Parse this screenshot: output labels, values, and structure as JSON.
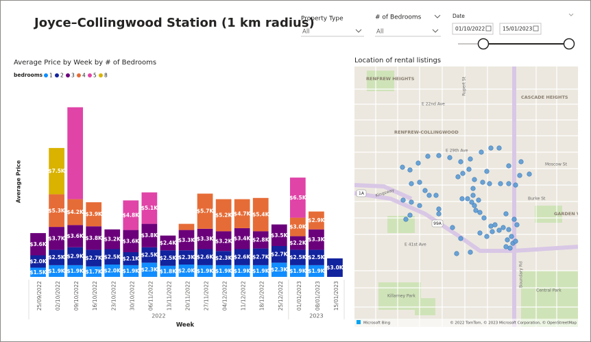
{
  "header": {
    "title": "Joyce–Collingwood Station (1 km radius)"
  },
  "slicers": {
    "property_type": {
      "label": "Property Type",
      "value": "All"
    },
    "bedrooms": {
      "label": "# of Bedrooms",
      "value": "All"
    },
    "date": {
      "label": "Date",
      "start": "01/10/2022",
      "end": "15/01/2023"
    }
  },
  "chart_data": {
    "type": "stacked_bar",
    "title": "Average Price by Week by # of Bedrooms",
    "x_label": "Week",
    "y_label": "Average Price",
    "legend_title": "bedrooms",
    "categories": [
      "25/09/2022",
      "02/10/2022",
      "09/10/2022",
      "16/10/2022",
      "23/10/2022",
      "30/10/2022",
      "06/11/2022",
      "13/11/2022",
      "20/11/2022",
      "27/11/2022",
      "04/12/2022",
      "11/12/2022",
      "18/12/2022",
      "25/12/2022",
      "01/01/2023",
      "08/01/2023",
      "15/01/2023"
    ],
    "year_groups": [
      {
        "label": "2022",
        "count": 14
      },
      {
        "label": "2023",
        "count": 3
      }
    ],
    "ylim": [
      0,
      28000
    ],
    "series": [
      {
        "name": "1",
        "color": "#118dff",
        "values": [
          1500,
          1900,
          1900,
          1700,
          2000,
          1900,
          2300,
          1800,
          2000,
          1900,
          1900,
          1900,
          1900,
          2300,
          1900,
          1900,
          null
        ],
        "value_labels": [
          "$1.5K",
          "$1.9K",
          "$1.9K",
          "$1.7K",
          "$2.0K",
          "$1.9K",
          "$2.3K",
          "$1.8K",
          "$2.0K",
          "$1.9K",
          "$1.9K",
          "$1.9K",
          "$1.9K",
          "$2.3K",
          "$1.9K",
          "$1.9K",
          null
        ]
      },
      {
        "name": "2",
        "color": "#12239e",
        "values": [
          2000,
          2500,
          2900,
          2700,
          2500,
          2100,
          2500,
          2500,
          2300,
          2600,
          2300,
          2600,
          2700,
          2700,
          2500,
          2500,
          3000
        ],
        "value_labels": [
          "$2.0K",
          "$2.5K",
          "$2.9K",
          "$2.7K",
          "$2.5K",
          "$2.1K",
          "$2.5K",
          "$2.5K",
          "$2.3K",
          "$2.6K",
          "$2.3K",
          "$2.6K",
          "$2.7K",
          "$2.7K",
          "$2.5K",
          "$2.5K",
          "$3.0K"
        ]
      },
      {
        "name": "3",
        "color": "#6b007b",
        "values": [
          3600,
          3700,
          3600,
          3800,
          3200,
          3600,
          3800,
          2400,
          3300,
          3300,
          3200,
          3400,
          2800,
          3500,
          2200,
          3300,
          null
        ],
        "value_labels": [
          "$3.6K",
          "$3.7K",
          "$3.6K",
          "$3.8K",
          "$3.2K",
          "$3.6K",
          "$3.8K",
          "$2.4K",
          "$3.3K",
          "$3.3K",
          "$3.2K",
          "$3.4K",
          "$2.8K",
          "$3.5K",
          "$2.2K",
          "$3.3K",
          null
        ]
      },
      {
        "name": "4",
        "color": "#e66c37",
        "values": [
          null,
          5300,
          4200,
          3900,
          null,
          null,
          null,
          null,
          1000,
          5700,
          5200,
          4700,
          5400,
          null,
          3000,
          2900,
          null
        ],
        "value_labels": [
          null,
          "$5.3K",
          "$4.2K",
          "$3.9K",
          null,
          null,
          null,
          null,
          null,
          "$5.7K",
          "$5.2K",
          "$4.7K",
          "$5.4K",
          null,
          "$3.0K",
          "$2.9K",
          null
        ]
      },
      {
        "name": "5",
        "color": "#e044a7",
        "values": [
          null,
          null,
          14900,
          null,
          null,
          4800,
          5100,
          null,
          null,
          null,
          null,
          null,
          null,
          null,
          6500,
          null,
          null
        ],
        "value_labels": [
          null,
          null,
          null,
          null,
          null,
          "$4.8K",
          "$5.1K",
          null,
          null,
          null,
          null,
          null,
          null,
          null,
          "$6.5K",
          null,
          null
        ]
      },
      {
        "name": "8",
        "color": "#d9b300",
        "values": [
          null,
          7500,
          null,
          null,
          null,
          null,
          null,
          null,
          null,
          null,
          null,
          null,
          null,
          null,
          null,
          null,
          null
        ],
        "value_labels": [
          null,
          "$7.5K",
          null,
          null,
          null,
          null,
          null,
          null,
          null,
          null,
          null,
          null,
          null,
          null,
          null,
          null,
          null
        ]
      }
    ]
  },
  "map": {
    "title": "Location of rental listings",
    "labels": [
      "RENFREW HEIGHTS",
      "CASCADE HEIGHTS",
      "RENFREW-COLLINGWOOD",
      "GARDEN VILLAGE",
      "Central Park",
      "Killarney Park",
      "Boundary Rd",
      "Kingsway",
      "E 29th Ave",
      "Moscow St",
      "Burke St",
      "E 41st Ave",
      "E 22nd Ave",
      "Rupert St",
      "1A",
      "99A"
    ],
    "attribution": "© 2022 TomTom, © 2023 Microsoft Corporation, © OpenStreetMap",
    "provider": "Microsoft Bing"
  }
}
